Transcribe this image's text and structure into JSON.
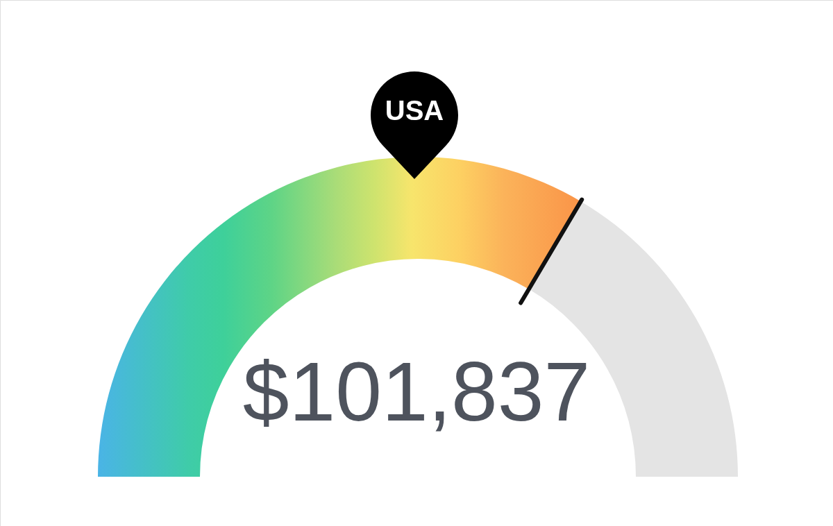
{
  "chart_data": {
    "type": "donut",
    "categories": [
      null,
      null
    ],
    "values": [
      67,
      33
    ],
    "colors": [
      "#f7e56c",
      "#e4e4e4"
    ],
    "annotations": [
      "USA",
      "$101,837"
    ]
  }
}
